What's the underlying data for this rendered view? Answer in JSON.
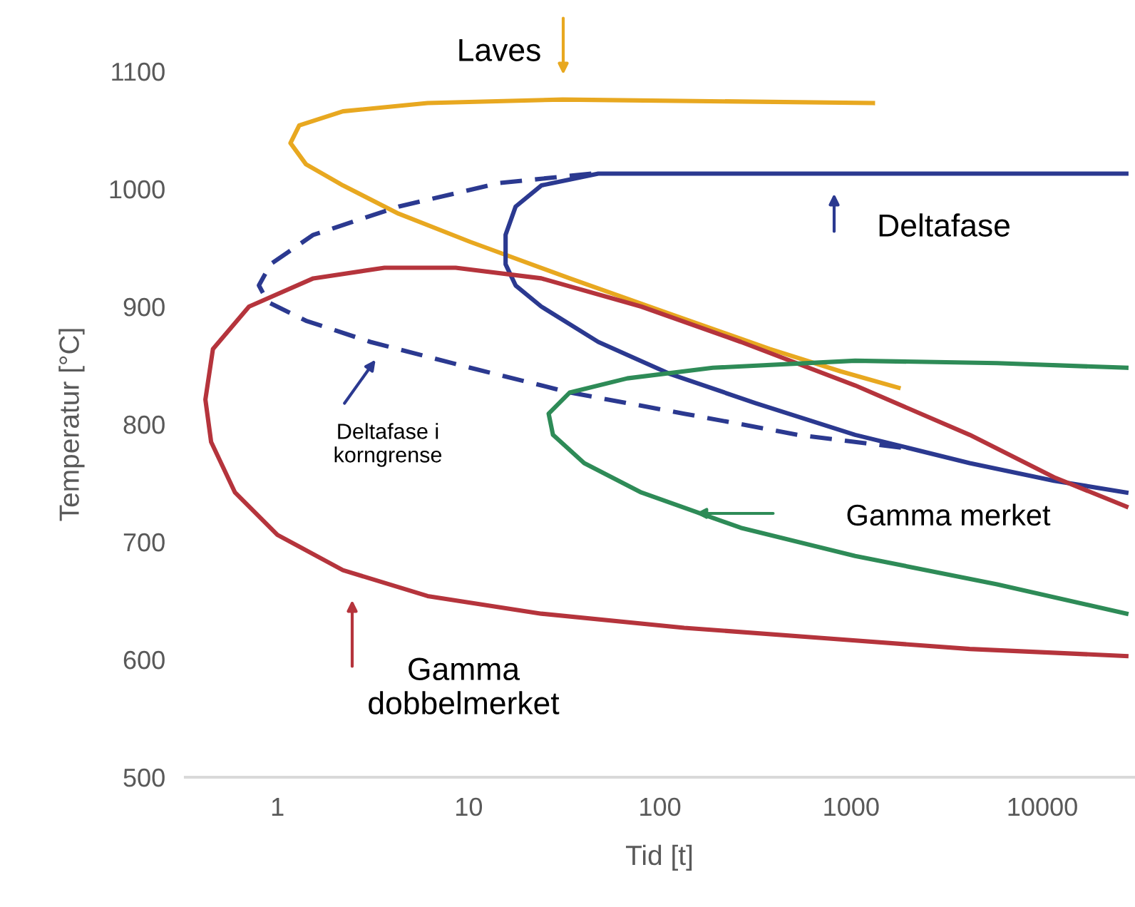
{
  "chart_data": {
    "type": "line",
    "xlabel": "Tid [t]",
    "ylabel": "Temperatur [°C]",
    "log": "x",
    "xlim": [
      0.33,
      30000
    ],
    "xticks": [
      1,
      10,
      100,
      1000,
      10000
    ],
    "ylim": [
      500,
      1100
    ],
    "yticks": [
      500,
      600,
      700,
      800,
      900,
      1000,
      1100
    ],
    "grid": false,
    "legend": false,
    "marker": "none",
    "series": [
      {
        "color": "#e8a820",
        "line_style": "solid",
        "x": [
          1300,
          31,
          6.1,
          2.2,
          1.3,
          1.17,
          1.41,
          2.2,
          4.3,
          10.2,
          33.8,
          112,
          375,
          880,
          1770
        ],
        "values": [
          1073,
          1076,
          1073,
          1066,
          1054,
          1039,
          1021,
          1003,
          979,
          955,
          924,
          894,
          864,
          845,
          831
        ]
      },
      {
        "color": "#2b3990",
        "line_style": "solid",
        "x": [
          27500,
          47.6,
          24,
          17.6,
          15.6,
          15.6,
          17.6,
          24,
          47.6,
          112,
          316,
          1050,
          4170,
          11500,
          27500
        ],
        "values": [
          1013,
          1013,
          1003,
          985,
          961,
          936,
          918,
          900,
          870,
          843,
          818,
          791,
          767,
          752,
          742
        ]
      },
      {
        "color": "#2b3990",
        "line_style": "dashed",
        "x": [
          43.8,
          14.4,
          4.3,
          1.54,
          0.92,
          0.8,
          0.89,
          1.41,
          3.06,
          10.2,
          33.8,
          134,
          528,
          2080
        ],
        "values": [
          1013,
          1005,
          985,
          961,
          936,
          918,
          904,
          888,
          870,
          848,
          827,
          809,
          791,
          779
        ]
      },
      {
        "color": "#b5343c",
        "line_style": "solid",
        "x": [
          27500,
          11500,
          4170,
          1050,
          265,
          80,
          24,
          8.55,
          3.63,
          1.54,
          0.71,
          0.46,
          0.42,
          0.45,
          0.6,
          1.0,
          2.2,
          6.1,
          24,
          134,
          745,
          4170,
          27500
        ],
        "values": [
          730,
          755,
          791,
          833,
          870,
          900,
          924,
          933,
          933,
          924,
          900,
          864,
          821,
          785,
          742,
          706,
          676,
          654,
          639,
          627,
          618,
          609,
          603
        ]
      },
      {
        "color": "#2e8b57",
        "line_style": "solid",
        "x": [
          27500,
          5800,
          1050,
          189,
          67.5,
          33.8,
          26.2,
          27.6,
          40.2,
          80,
          265,
          1050,
          5800,
          27500
        ],
        "values": [
          848,
          852,
          854,
          848,
          839,
          827,
          809,
          791,
          767,
          742,
          712,
          688,
          664,
          639
        ]
      }
    ],
    "annotations": [
      "Laves",
      "Deltafase",
      "Deltafase i\nkorngrense",
      "Gamma merket",
      "Gamma\ndobbelmerket"
    ]
  }
}
